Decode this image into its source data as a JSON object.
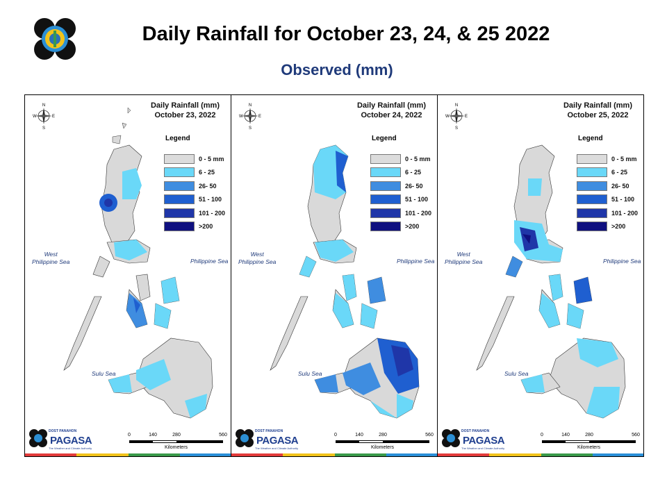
{
  "title": "Daily Rainfall for October 23, 24, & 25 2022",
  "subtitle": "Observed (mm)",
  "legend": {
    "title": "Legend",
    "items": [
      {
        "label": "0 - 5 mm",
        "color": "#dcdcdc"
      },
      {
        "label": "6 - 25",
        "color": "#6ad8f8"
      },
      {
        "label": "26- 50",
        "color": "#3f8de0"
      },
      {
        "label": "51 - 100",
        "color": "#1f5fd0"
      },
      {
        "label": "101 - 200",
        "color": "#1f36a8"
      },
      {
        "label": ">200",
        "color": "#0f1080"
      }
    ]
  },
  "panels": [
    {
      "heading": "Daily Rainfall (mm)",
      "date": "October 23, 2022"
    },
    {
      "heading": "Daily Rainfall (mm)",
      "date": "October 24, 2022"
    },
    {
      "heading": "Daily Rainfall (mm)",
      "date": "October 25, 2022"
    }
  ],
  "seas": {
    "west_line1": "West",
    "west_line2": "Philippine Sea",
    "philippine": "Philippine Sea",
    "sulu": "Sulu Sea"
  },
  "compass": {
    "n": "N",
    "s": "S",
    "e": "E",
    "w": "W"
  },
  "scale": {
    "ticks": [
      "0",
      "140",
      "280",
      "560"
    ],
    "unit": "Kilometers"
  },
  "branding": {
    "small": "DOST PANAHON",
    "name": "PAGASA",
    "tagline": "The Weather and Climate Authority"
  },
  "colors": {
    "land_base": "#d9d9d9",
    "stripe": [
      "#e23b3b",
      "#f2c31b",
      "#3a9a4a",
      "#2a8fd8"
    ]
  }
}
